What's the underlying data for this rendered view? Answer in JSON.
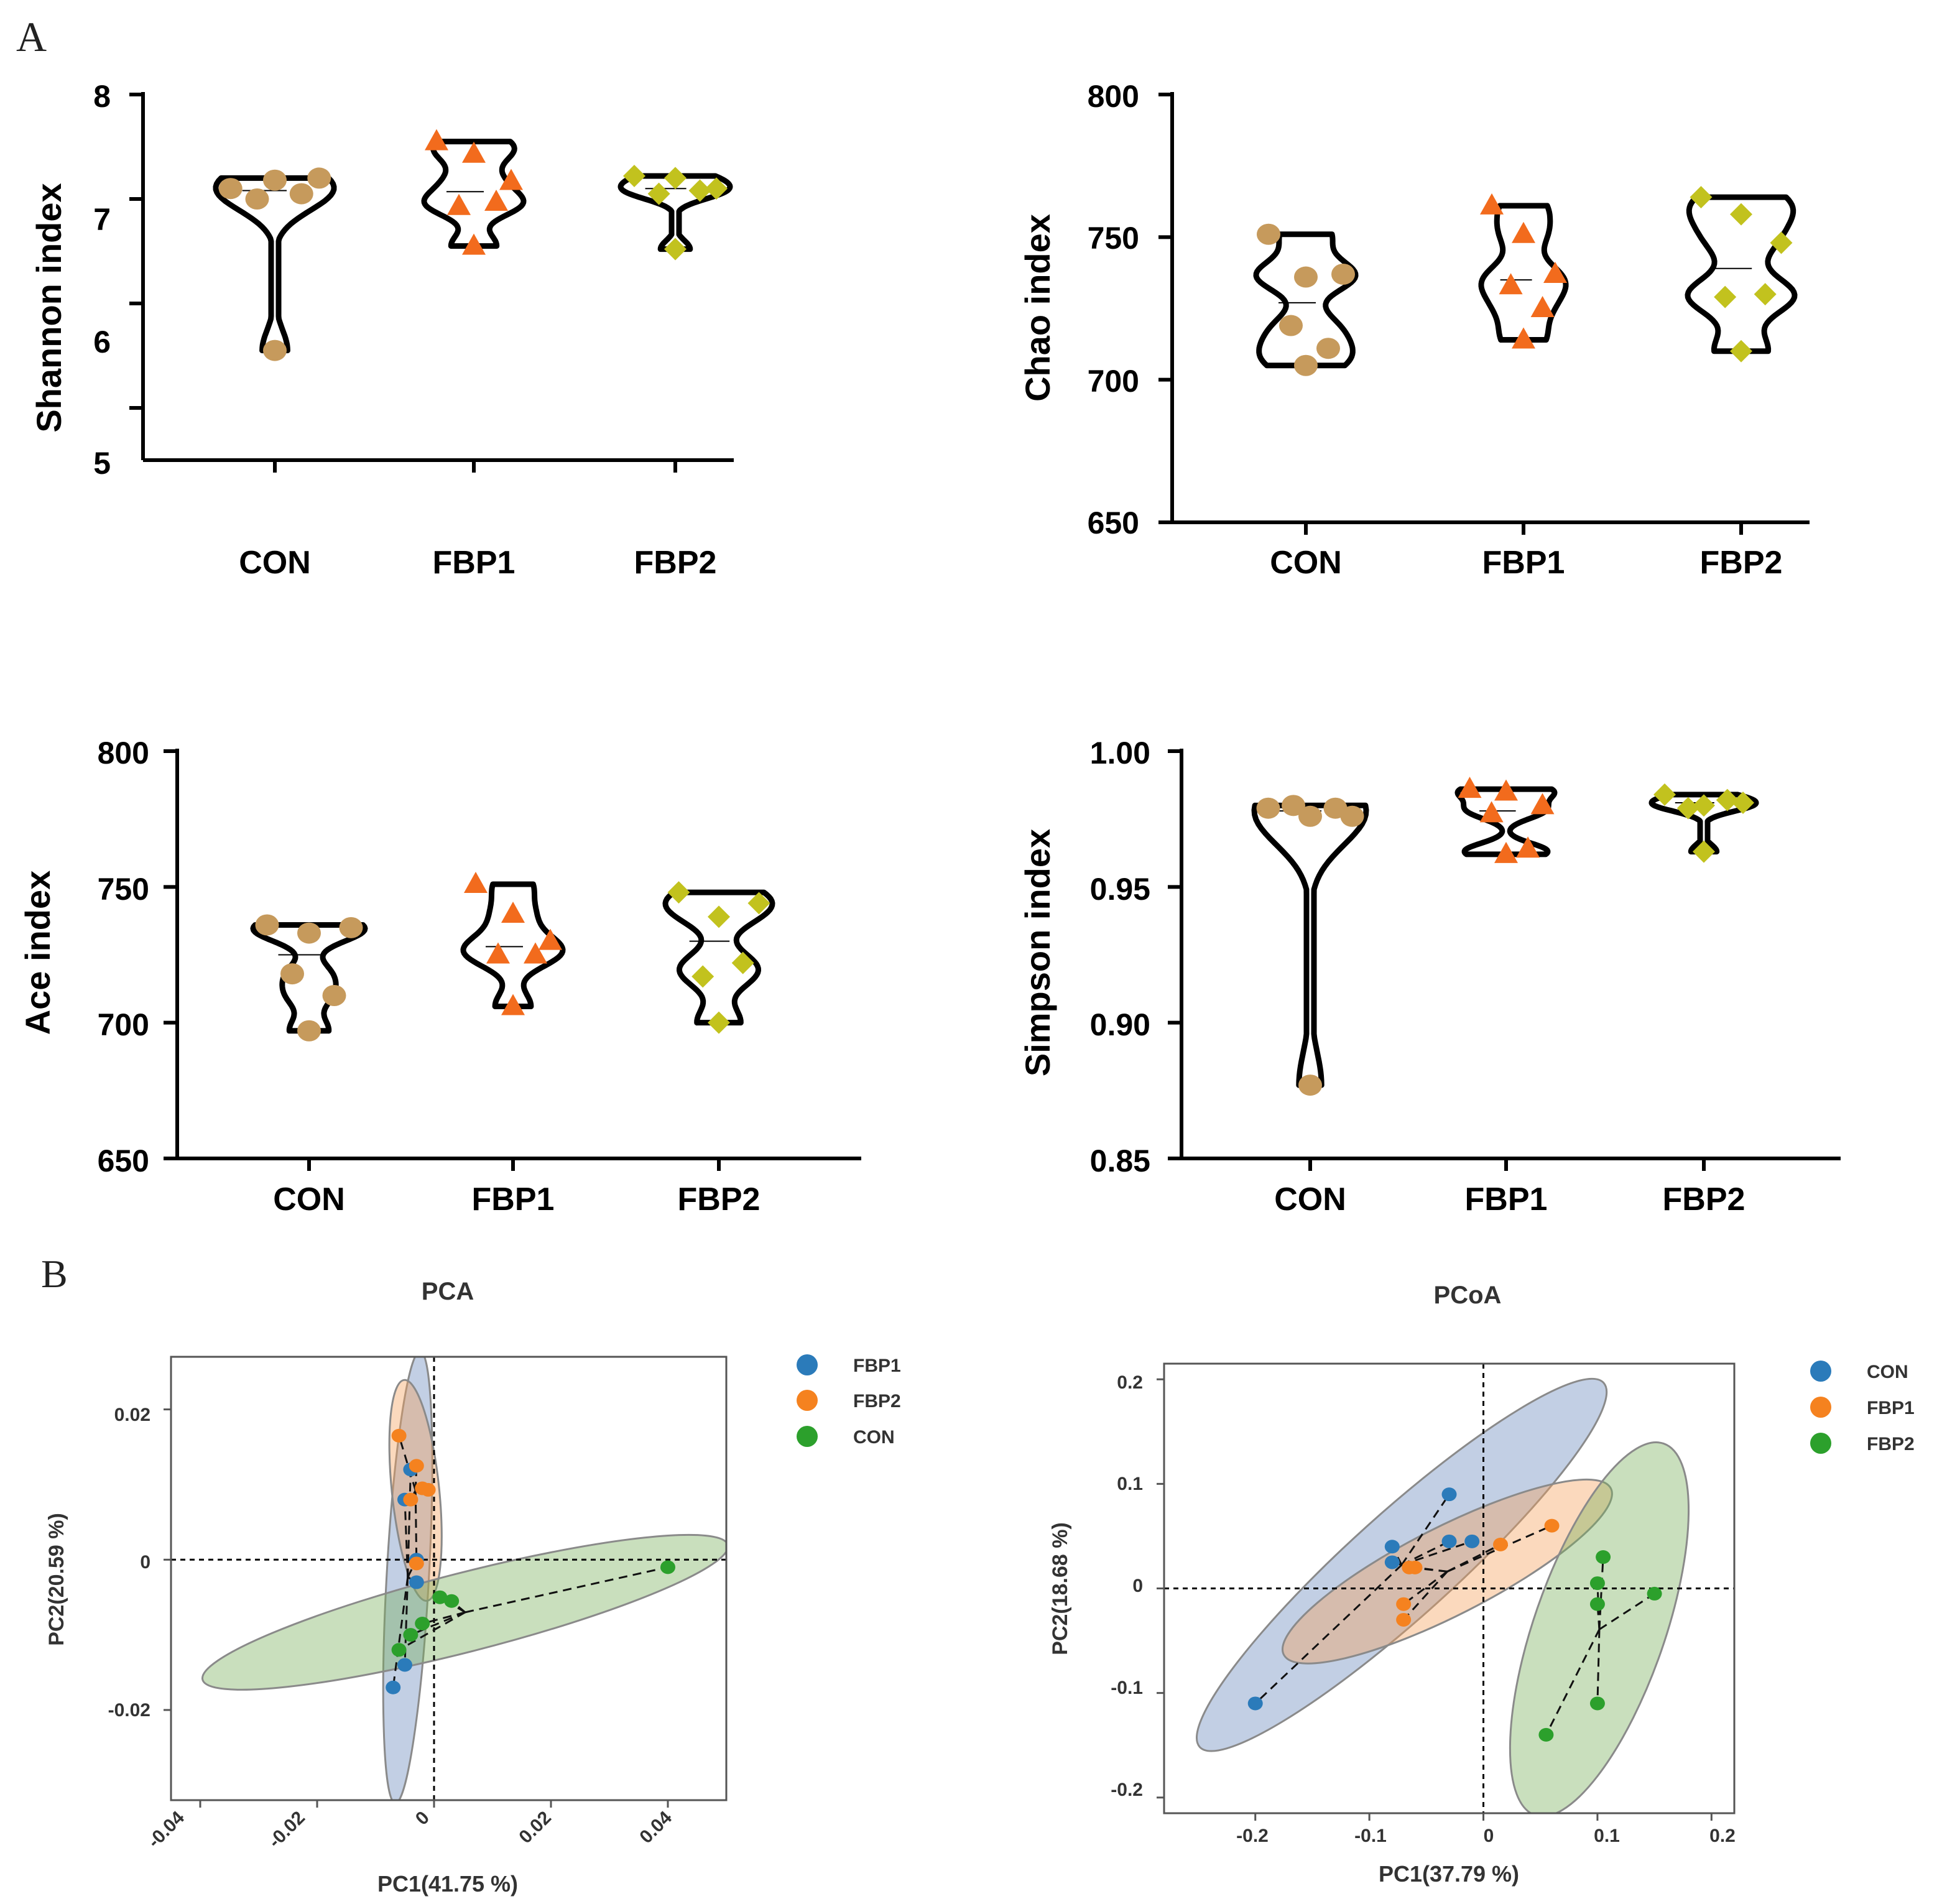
{
  "panel_labels": {
    "a": "A",
    "b": "B"
  },
  "chart_data": [
    {
      "type": "violin",
      "ylabel": "Shannon index",
      "ylim": [
        4.5,
        8
      ],
      "yticks": [
        5,
        6,
        7,
        8
      ],
      "categories": [
        "CON",
        "FBP1",
        "FBP2"
      ],
      "series": [
        {
          "name": "CON",
          "values": [
            7.1,
            7.18,
            7.2,
            7.0,
            7.05,
            5.55
          ],
          "median": 7.08
        },
        {
          "name": "FBP1",
          "values": [
            7.55,
            7.43,
            7.17,
            6.93,
            6.97,
            6.55
          ],
          "median": 7.07
        },
        {
          "name": "FBP2",
          "values": [
            7.22,
            7.2,
            7.1,
            7.05,
            7.08,
            6.52
          ],
          "median": 7.1
        }
      ]
    },
    {
      "type": "violin",
      "ylabel": "Chao index",
      "ylim": [
        650,
        800
      ],
      "yticks": [
        650,
        700,
        750,
        800
      ],
      "categories": [
        "CON",
        "FBP1",
        "FBP2"
      ],
      "series": [
        {
          "name": "CON",
          "values": [
            751,
            736,
            737,
            719,
            711,
            705
          ],
          "median": 727
        },
        {
          "name": "FBP1",
          "values": [
            761,
            751,
            737,
            733,
            725,
            714
          ],
          "median": 735
        },
        {
          "name": "FBP2",
          "values": [
            764,
            758,
            748,
            729,
            730,
            710
          ],
          "median": 739
        }
      ]
    },
    {
      "type": "violin",
      "ylabel": "Ace index",
      "ylim": [
        650,
        800
      ],
      "yticks": [
        650,
        700,
        750,
        800
      ],
      "categories": [
        "CON",
        "FBP1",
        "FBP2"
      ],
      "series": [
        {
          "name": "CON",
          "values": [
            736,
            733,
            735,
            718,
            710,
            697
          ],
          "median": 725
        },
        {
          "name": "FBP1",
          "values": [
            751,
            740,
            730,
            725,
            725,
            706
          ],
          "median": 728
        },
        {
          "name": "FBP2",
          "values": [
            748,
            739,
            744,
            717,
            722,
            700
          ],
          "median": 730
        }
      ]
    },
    {
      "type": "violin",
      "ylabel": "Simpson index",
      "ylim": [
        0.85,
        1.0
      ],
      "yticks": [
        "0.85",
        "0.90",
        "0.95",
        "1.00"
      ],
      "categories": [
        "CON",
        "FBP1",
        "FBP2"
      ],
      "series": [
        {
          "name": "CON",
          "values": [
            0.979,
            0.976,
            0.976,
            0.98,
            0.979,
            0.877
          ],
          "median": 0.978
        },
        {
          "name": "FBP1",
          "values": [
            0.986,
            0.985,
            0.98,
            0.977,
            0.964,
            0.962
          ],
          "median": 0.978
        },
        {
          "name": "FBP2",
          "values": [
            0.984,
            0.98,
            0.981,
            0.979,
            0.982,
            0.963
          ],
          "median": 0.981
        }
      ]
    },
    {
      "type": "scatter",
      "title": "PCA",
      "xlabel": "PC1(41.75 %)",
      "ylabel": "PC2(20.59 %)",
      "xlim": [
        -0.045,
        0.05
      ],
      "ylim": [
        -0.032,
        0.027
      ],
      "xticks": [
        "-0.04",
        "-0.02",
        "0",
        "0.02",
        "0.04"
      ],
      "yticks": [
        "-0.02",
        "0",
        "0.02"
      ],
      "legend_position": "right",
      "series": [
        {
          "name": "FBP1",
          "color": "#2b7bba",
          "x": [
            -0.004,
            -0.005,
            -0.003,
            -0.003,
            -0.005,
            -0.007
          ],
          "y": [
            0.012,
            0.008,
            0.0,
            -0.003,
            -0.014,
            -0.017
          ]
        },
        {
          "name": "FBP2",
          "color": "#f5821f",
          "x": [
            -0.006,
            -0.003,
            -0.002,
            -0.001,
            -0.003,
            -0.004
          ],
          "y": [
            0.0165,
            0.0125,
            0.0095,
            0.0093,
            -0.0005,
            0.008
          ]
        },
        {
          "name": "CON",
          "color": "#2ca02c",
          "x": [
            0.04,
            0.003,
            0.001,
            -0.002,
            -0.004,
            -0.006
          ],
          "y": [
            -0.001,
            -0.0055,
            -0.005,
            -0.0085,
            -0.01,
            -0.012
          ]
        }
      ]
    },
    {
      "type": "scatter",
      "title": "PCoA",
      "xlabel": "PC1(37.79 %)",
      "ylabel": "PC2(18.68 %)",
      "xlim": [
        -0.28,
        0.22
      ],
      "ylim": [
        -0.215,
        0.215
      ],
      "xticks": [
        "-0.2",
        "-0.1",
        "0",
        "0.1",
        "0.2"
      ],
      "yticks": [
        "-0.2",
        "-0.1",
        "0",
        "0.1",
        "0.2"
      ],
      "legend_position": "right",
      "series": [
        {
          "name": "CON",
          "color": "#2b7bba",
          "x": [
            -0.2,
            -0.08,
            -0.08,
            -0.03,
            -0.01,
            -0.03
          ],
          "y": [
            -0.11,
            0.04,
            0.025,
            0.09,
            0.045,
            0.045
          ]
        },
        {
          "name": "FBP1",
          "color": "#f5821f",
          "x": [
            0.06,
            0.015,
            -0.06,
            -0.065,
            -0.07,
            -0.07
          ],
          "y": [
            0.06,
            0.042,
            0.02,
            0.02,
            -0.015,
            -0.03
          ]
        },
        {
          "name": "FBP2",
          "color": "#2ca02c",
          "x": [
            0.105,
            0.1,
            0.15,
            0.1,
            0.1,
            0.055
          ],
          "y": [
            0.03,
            0.005,
            -0.005,
            -0.015,
            -0.11,
            -0.14
          ]
        }
      ]
    }
  ]
}
